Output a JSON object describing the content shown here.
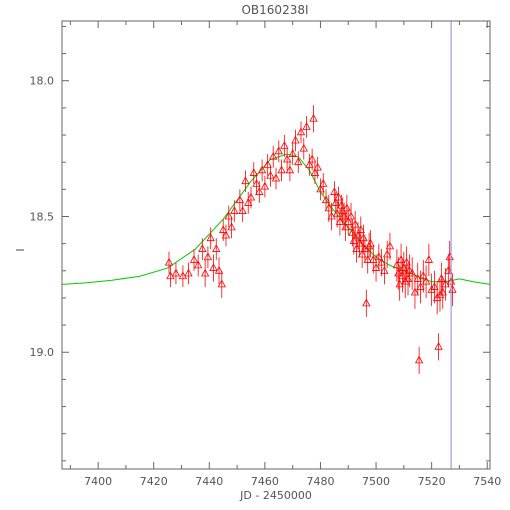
{
  "chart_data": {
    "type": "scatter",
    "title": "OB160238I",
    "xlabel": "JD - 2450000",
    "ylabel": "I",
    "xlim": [
      7387,
      7541
    ],
    "ylim": [
      19.43,
      17.78
    ],
    "y_inverted": true,
    "x_ticks": [
      7400,
      7420,
      7440,
      7460,
      7480,
      7500,
      7520,
      7540
    ],
    "y_ticks": [
      18.0,
      18.5,
      19.0
    ],
    "grid": false,
    "colors": {
      "data": "#ff0000",
      "model": "#00cc00",
      "marker_line": "#8888dd",
      "axes": "#666666"
    },
    "marker": "open-triangle-with-errorbars",
    "vertical_line_x": 7527,
    "model_curve": {
      "x": [
        7387,
        7395,
        7405,
        7415,
        7425,
        7435,
        7445,
        7455,
        7462,
        7468,
        7472,
        7476,
        7480,
        7485,
        7490,
        7495,
        7500,
        7505,
        7510,
        7515,
        7520,
        7525,
        7530,
        7535,
        7541
      ],
      "y": [
        18.75,
        18.745,
        18.735,
        18.72,
        18.69,
        18.62,
        18.51,
        18.37,
        18.29,
        18.27,
        18.28,
        18.33,
        18.41,
        18.48,
        18.54,
        18.6,
        18.65,
        18.68,
        18.7,
        18.72,
        18.74,
        18.74,
        18.73,
        18.74,
        18.75
      ]
    },
    "series": [
      {
        "x": [
          7425.5,
          7426.0,
          7428.0,
          7430.5,
          7432.5,
          7434.5,
          7436.0,
          7437.5,
          7438.5,
          7439.5,
          7440.5,
          7441.5,
          7442.5,
          7443.5,
          7444.5,
          7445.0,
          7446.0,
          7447.0,
          7448.0,
          7449.0,
          7451.0,
          7452.0,
          7453.0,
          7454.0,
          7455.0,
          7456.0,
          7457.0,
          7458.0,
          7459.0,
          7460.0,
          7461.0,
          7462.0,
          7463.0,
          7464.0,
          7465.0,
          7466.0,
          7467.0,
          7468.0,
          7469.0,
          7470.0,
          7471.0,
          7472.0,
          7473.0,
          7474.0,
          7475.0,
          7476.0,
          7477.0,
          7478.0,
          7479.0,
          7480.0,
          7481.0,
          7482.0,
          7483.0,
          7484.0,
          7485.0,
          7485.5,
          7486.0,
          7486.5,
          7487.0,
          7487.5,
          7488.0,
          7488.5,
          7489.0,
          7489.5,
          7490.0,
          7491.0,
          7491.5,
          7492.0,
          7492.5,
          7493.0,
          7493.5,
          7494.0,
          7494.5,
          7495.0,
          7495.5,
          7496.0,
          7497.0,
          7497.5,
          7498.0,
          7499.0,
          7500.0,
          7501.0,
          7502.0,
          7503.0,
          7504.0,
          7505.0,
          7507.5,
          7508.0,
          7508.5,
          7509.0,
          7509.5,
          7510.0,
          7510.5,
          7511.0,
          7511.5,
          7512.0,
          7513.0,
          7514.0,
          7515.0,
          7516.0,
          7517.0,
          7518.0,
          7519.0,
          7520.0,
          7521.0,
          7522.0,
          7523.0,
          7523.5,
          7524.0,
          7525.0,
          7526.0,
          7526.5,
          7527.0,
          7527.5
        ],
        "y": [
          18.67,
          18.72,
          18.71,
          18.72,
          18.71,
          18.66,
          18.68,
          18.62,
          18.71,
          18.65,
          18.58,
          18.69,
          18.62,
          18.7,
          18.75,
          18.55,
          18.57,
          18.5,
          18.54,
          18.48,
          18.44,
          18.48,
          18.37,
          18.45,
          18.43,
          18.34,
          18.38,
          18.41,
          18.33,
          18.39,
          18.31,
          18.35,
          18.28,
          18.36,
          18.26,
          18.33,
          18.24,
          18.29,
          18.33,
          18.27,
          18.22,
          18.3,
          18.19,
          18.25,
          18.17,
          18.31,
          18.29,
          18.34,
          18.32,
          18.4,
          18.38,
          18.44,
          18.47,
          18.5,
          18.41,
          18.45,
          18.49,
          18.43,
          18.52,
          18.46,
          18.48,
          18.5,
          18.54,
          18.47,
          18.52,
          18.5,
          18.56,
          18.59,
          18.53,
          18.62,
          18.57,
          18.6,
          18.55,
          18.64,
          18.58,
          18.62,
          18.66,
          18.61,
          18.6,
          18.66,
          18.69,
          18.65,
          18.67,
          18.7,
          18.64,
          18.61,
          18.68,
          18.71,
          18.75,
          18.66,
          18.72,
          18.69,
          18.74,
          18.67,
          18.73,
          18.7,
          18.71,
          18.78,
          18.73,
          18.76,
          18.72,
          18.74,
          18.66,
          18.77,
          18.76,
          18.8,
          18.79,
          18.73,
          18.78,
          18.75,
          18.7,
          18.65,
          18.74,
          18.77
        ],
        "err": [
          0.04,
          0.04,
          0.04,
          0.04,
          0.04,
          0.04,
          0.04,
          0.04,
          0.05,
          0.04,
          0.04,
          0.05,
          0.04,
          0.05,
          0.05,
          0.04,
          0.04,
          0.04,
          0.04,
          0.04,
          0.04,
          0.04,
          0.04,
          0.04,
          0.04,
          0.04,
          0.04,
          0.04,
          0.04,
          0.04,
          0.04,
          0.04,
          0.04,
          0.04,
          0.04,
          0.04,
          0.04,
          0.04,
          0.04,
          0.04,
          0.04,
          0.04,
          0.04,
          0.04,
          0.04,
          0.04,
          0.04,
          0.04,
          0.04,
          0.04,
          0.04,
          0.04,
          0.05,
          0.05,
          0.04,
          0.04,
          0.05,
          0.04,
          0.05,
          0.04,
          0.05,
          0.05,
          0.05,
          0.05,
          0.05,
          0.05,
          0.05,
          0.05,
          0.05,
          0.05,
          0.05,
          0.05,
          0.05,
          0.05,
          0.05,
          0.05,
          0.05,
          0.05,
          0.05,
          0.05,
          0.05,
          0.05,
          0.05,
          0.05,
          0.05,
          0.05,
          0.06,
          0.06,
          0.06,
          0.06,
          0.06,
          0.06,
          0.06,
          0.06,
          0.06,
          0.06,
          0.06,
          0.06,
          0.06,
          0.06,
          0.06,
          0.06,
          0.06,
          0.06,
          0.06,
          0.06,
          0.06,
          0.06,
          0.06,
          0.06,
          0.06,
          0.06,
          0.06,
          0.06
        ],
        "outliers_x": [
          7515.5,
          7522.5,
          7496.5,
          7477.5
        ],
        "outliers_y": [
          19.03,
          18.98,
          18.82,
          18.14
        ]
      }
    ]
  }
}
